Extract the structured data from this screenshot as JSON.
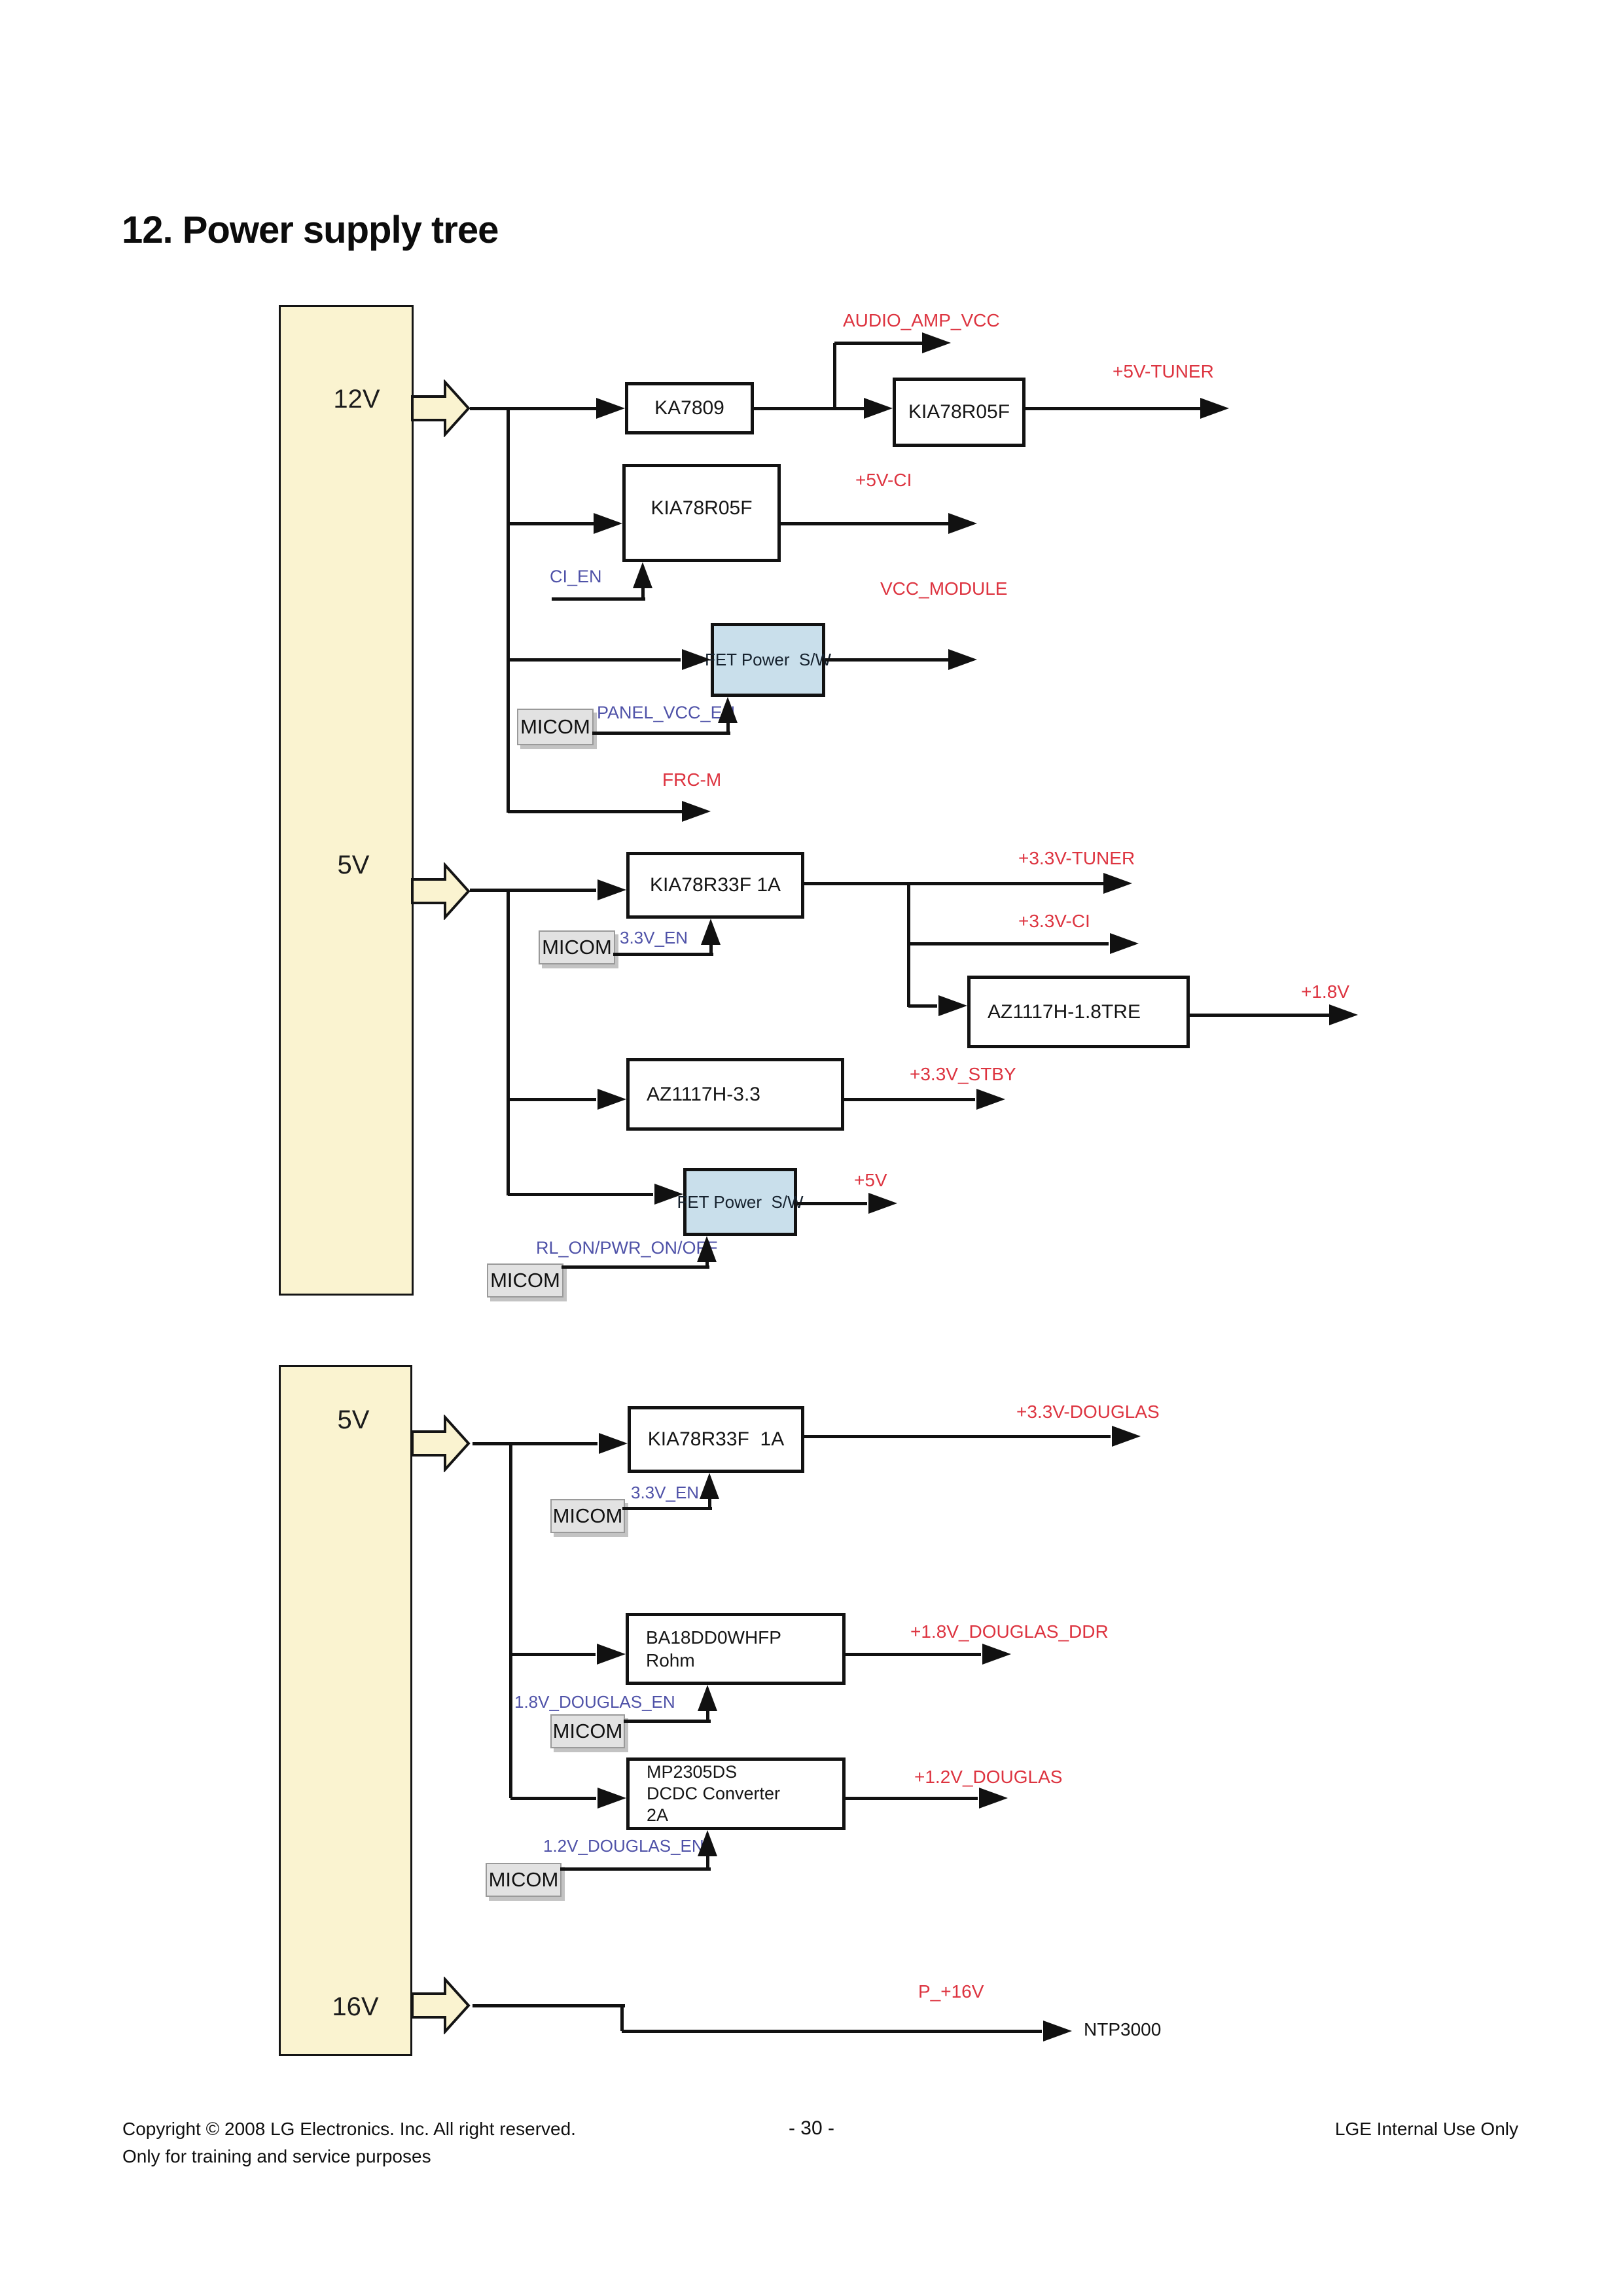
{
  "title": "12. Power supply tree",
  "colors": {
    "rail_fill": "#faf3d0",
    "fet_fill": "#c9dfeb",
    "signal_red": "#dd3440",
    "enable_blue": "#4f52a8"
  },
  "rails": {
    "v12": "12V",
    "v5_top": "5V",
    "v5_bottom": "5V",
    "v16": "16V"
  },
  "blocks": {
    "micom": "MICOM",
    "ka7809": "KA7809",
    "kia78r05f_tuner": "KIA78R05F",
    "kia78r05f_ci": "KIA78R05F",
    "fet_power_sw": "FET Power  S/W",
    "kia78r33f_a": "KIA78R33F 1A",
    "az1117h_18": "AZ1117H-1.8TRE",
    "az1117h_33": "AZ1117H-3.3",
    "kia78r33f_b": "KIA78R33F  1A",
    "ba18dd0whfp_line1": "BA18DD0WHFP",
    "ba18dd0whfp_line2": "Rohm",
    "mp2305ds_line1": "MP2305DS",
    "mp2305ds_line2": "DCDC Converter",
    "mp2305ds_line3": "2A"
  },
  "signals": {
    "audio_amp_vcc": "AUDIO_AMP_VCC",
    "p5v_tuner": "+5V-TUNER",
    "p5v_ci": "+5V-CI",
    "vcc_module": "VCC_MODULE",
    "frc_m": "FRC-M",
    "p33v_tuner": "+3.3V-TUNER",
    "p33v_ci": "+3.3V-CI",
    "p18v": "+1.8V",
    "p33v_stby": "+3.3V_STBY",
    "p5v": "+5V",
    "p33v_douglas": "+3.3V-DOUGLAS",
    "p18v_douglas_ddr": "+1.8V_DOUGLAS_DDR",
    "p12v_douglas": "+1.2V_DOUGLAS",
    "p_16v": "P_+16V",
    "ntp3000": "NTP3000"
  },
  "enables": {
    "ci_en": "CI_EN",
    "panel_vcc_en": "PANEL_VCC_EN",
    "v33_en_a": "3.3V_EN",
    "rl_on_pwr_on_off": "RL_ON/PWR_ON/OFF",
    "v33_en_b": "3.3V_EN",
    "v18_douglas_en": "1.8V_DOUGLAS_EN",
    "v12_douglas_en": "1.2V_DOUGLAS_EN"
  },
  "footer": {
    "copyright": "Copyright © 2008 LG Electronics. Inc. All right reserved.",
    "training": "Only for training and service purposes",
    "page_number": "- 30 -",
    "internal_use": "LGE Internal Use Only"
  }
}
